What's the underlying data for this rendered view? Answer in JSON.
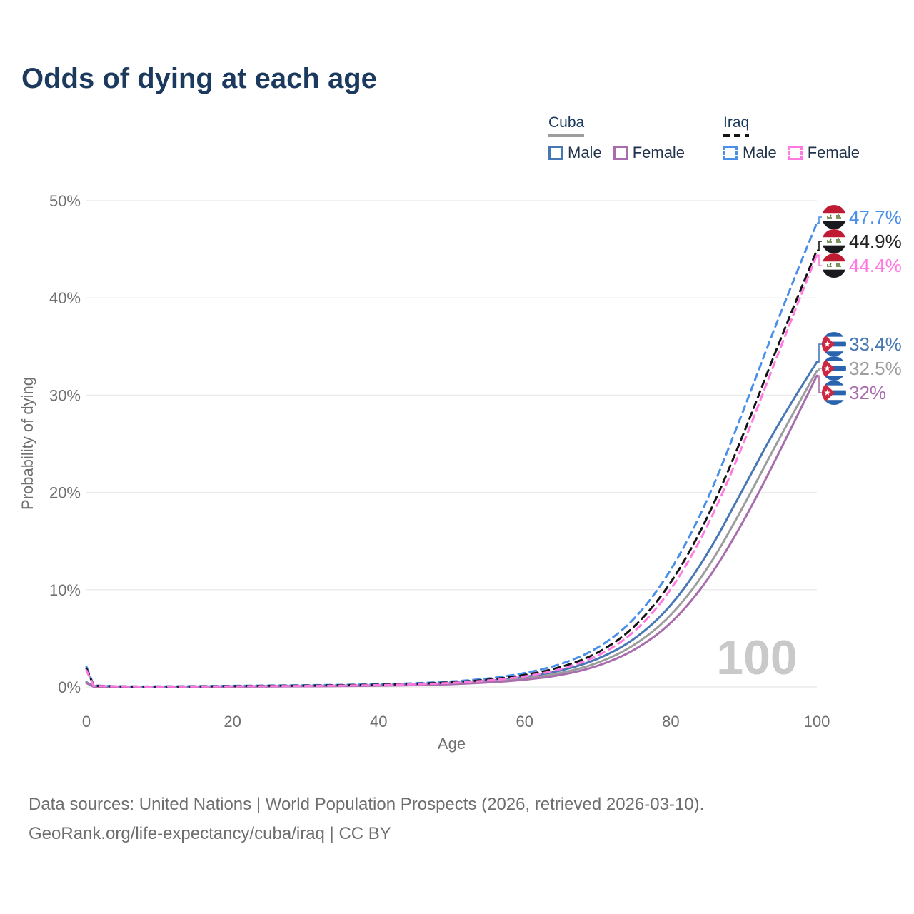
{
  "title": "Odds of dying at each age",
  "legend": {
    "groups": [
      {
        "name": "Cuba",
        "line_style": "solid",
        "underline_color": "#9e9e9e",
        "items": [
          {
            "label": "Male",
            "color": "#4878b4"
          },
          {
            "label": "Female",
            "color": "#a96cac"
          }
        ]
      },
      {
        "name": "Iraq",
        "line_style": "dashed",
        "underline_color": "#141414",
        "items": [
          {
            "label": "Male",
            "color": "#4a8fe8"
          },
          {
            "label": "Female",
            "color": "#ff79e1"
          }
        ]
      }
    ]
  },
  "watermark": "100",
  "axes": {
    "x": {
      "label": "Age",
      "ticks": [
        {
          "v": 0,
          "label": "0"
        },
        {
          "v": 20,
          "label": "20"
        },
        {
          "v": 40,
          "label": "40"
        },
        {
          "v": 60,
          "label": "60"
        },
        {
          "v": 80,
          "label": "80"
        },
        {
          "v": 100,
          "label": "100"
        }
      ]
    },
    "y": {
      "label": "Probability of dying",
      "ticks": [
        {
          "v": 0,
          "label": "0%"
        },
        {
          "v": 10,
          "label": "10%"
        },
        {
          "v": 20,
          "label": "20%"
        },
        {
          "v": 30,
          "label": "30%"
        },
        {
          "v": 40,
          "label": "40%"
        },
        {
          "v": 50,
          "label": "50%"
        }
      ]
    }
  },
  "chart_data": {
    "type": "line",
    "title": "Odds of dying at each age",
    "xlabel": "Age",
    "ylabel": "Probability of dying",
    "xlim": [
      0,
      100
    ],
    "ylim": [
      0,
      50
    ],
    "y_unit": "%",
    "grid": "horizontal",
    "legend_position": "top-right",
    "x": [
      0,
      1,
      5,
      10,
      15,
      20,
      25,
      30,
      35,
      40,
      45,
      50,
      55,
      60,
      65,
      70,
      75,
      80,
      85,
      90,
      95,
      100
    ],
    "series": [
      {
        "name": "Iraq Male",
        "country": "Iraq",
        "sex": "Male",
        "style": "dashed",
        "color": "#4a8fe8",
        "end_label": "47.7%",
        "flag": "iraq",
        "values": [
          2.1,
          0.15,
          0.05,
          0.05,
          0.08,
          0.12,
          0.15,
          0.18,
          0.22,
          0.28,
          0.38,
          0.55,
          0.85,
          1.4,
          2.3,
          3.9,
          6.8,
          11.8,
          19.0,
          28.5,
          38.5,
          47.7
        ]
      },
      {
        "name": "Iraq Both sexes",
        "country": "Iraq",
        "sex": "Both",
        "style": "dashed",
        "color": "#141414",
        "end_label": "44.9%",
        "flag": "iraq",
        "values": [
          1.9,
          0.13,
          0.04,
          0.04,
          0.06,
          0.09,
          0.12,
          0.14,
          0.18,
          0.23,
          0.32,
          0.47,
          0.73,
          1.2,
          2.0,
          3.4,
          6.0,
          10.5,
          17.2,
          26.0,
          35.8,
          44.9
        ]
      },
      {
        "name": "Iraq Female",
        "country": "Iraq",
        "sex": "Female",
        "style": "dashed",
        "color": "#ff79e1",
        "end_label": "44.4%",
        "flag": "iraq",
        "values": [
          1.7,
          0.12,
          0.04,
          0.04,
          0.05,
          0.07,
          0.09,
          0.11,
          0.14,
          0.19,
          0.27,
          0.41,
          0.65,
          1.05,
          1.8,
          3.1,
          5.5,
          9.8,
          16.3,
          25.0,
          34.9,
          44.4
        ]
      },
      {
        "name": "Cuba Male",
        "country": "Cuba",
        "sex": "Male",
        "style": "solid",
        "color": "#4878b4",
        "end_label": "33.4%",
        "flag": "cuba",
        "values": [
          0.5,
          0.04,
          0.02,
          0.02,
          0.04,
          0.06,
          0.08,
          0.1,
          0.13,
          0.18,
          0.26,
          0.4,
          0.62,
          1.0,
          1.65,
          2.8,
          4.8,
          8.2,
          13.5,
          20.5,
          27.5,
          33.4
        ]
      },
      {
        "name": "Cuba Both sexes",
        "country": "Cuba",
        "sex": "Both",
        "style": "solid",
        "color": "#9c9c9c",
        "end_label": "32.5%",
        "flag": "cuba",
        "values": [
          0.45,
          0.035,
          0.02,
          0.02,
          0.03,
          0.05,
          0.06,
          0.08,
          0.11,
          0.15,
          0.21,
          0.33,
          0.52,
          0.85,
          1.4,
          2.4,
          4.2,
          7.2,
          12.0,
          18.6,
          25.8,
          32.5
        ]
      },
      {
        "name": "Cuba Female",
        "country": "Cuba",
        "sex": "Female",
        "style": "solid",
        "color": "#a96cac",
        "end_label": "32%",
        "flag": "cuba",
        "values": [
          0.4,
          0.03,
          0.015,
          0.015,
          0.025,
          0.04,
          0.05,
          0.07,
          0.09,
          0.13,
          0.18,
          0.28,
          0.45,
          0.72,
          1.2,
          2.1,
          3.7,
          6.4,
          10.8,
          17.0,
          24.3,
          32.0
        ]
      }
    ],
    "end_label_colors": {
      "Iraq Male": "#4a8fe8",
      "Iraq Both sexes": "#222222",
      "Iraq Female": "#ff79e1",
      "Cuba Male": "#4878b4",
      "Cuba Both sexes": "#9e9e9e",
      "Cuba Female": "#a96cac"
    }
  },
  "footer": {
    "line1": "Data sources: United Nations | World Population Prospects (2026, retrieved 2026-03-10).",
    "line2": "GeoRank.org/life-expectancy/cuba/iraq | CC BY"
  }
}
